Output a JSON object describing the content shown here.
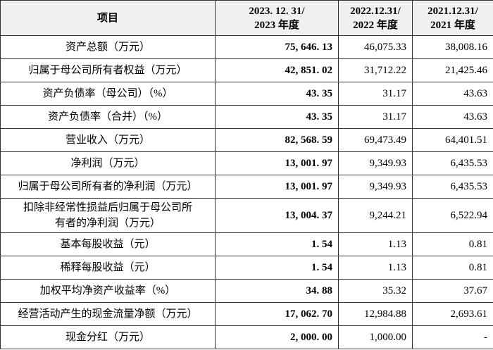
{
  "table": {
    "header": [
      [
        "项目"
      ],
      [
        "2023. 12. 31/",
        "2023 年度"
      ],
      [
        "2022.12.31/",
        "2022 年度"
      ],
      [
        "2021.12.31/",
        "2021 年度"
      ]
    ],
    "rows": [
      [
        [
          "资产总额（万元）"
        ],
        "75, 646. 13",
        "46,075.33",
        "38,008.16"
      ],
      [
        [
          "归属于母公司所有者权益（万元）"
        ],
        "42, 851. 02",
        "31,712.22",
        "21,425.46"
      ],
      [
        [
          "资产负债率（母公司）（%）"
        ],
        "43. 35",
        "31.17",
        "43.63"
      ],
      [
        [
          "资产负债率（合并）（%）"
        ],
        "43. 35",
        "31.17",
        "43.63"
      ],
      [
        [
          "营业收入（万元）"
        ],
        "82, 568. 59",
        "69,473.49",
        "64,401.51"
      ],
      [
        [
          "净利润（万元）"
        ],
        "13, 001. 97",
        "9,349.93",
        "6,435.53"
      ],
      [
        [
          "归属于母公司所有者的净利润（万元）"
        ],
        "13, 001. 97",
        "9,349.93",
        "6,435.53"
      ],
      [
        [
          "扣除非经常性损益后归属于母公司所",
          "有者的净利润（万元）"
        ],
        "13, 004. 37",
        "9,244.21",
        "6,522.94"
      ],
      [
        [
          "基本每股收益（元）"
        ],
        "1. 54",
        "1.13",
        "0.81"
      ],
      [
        [
          "稀释每股收益（元）"
        ],
        "1. 54",
        "1.13",
        "0.81"
      ],
      [
        [
          "加权平均净资产收益率（%）"
        ],
        "34. 88",
        "35.32",
        "37.67"
      ],
      [
        [
          "经营活动产生的现金流量净额（万元）"
        ],
        "17, 062. 70",
        "12,984.88",
        "2,693.61"
      ],
      [
        [
          "现金分红（万元）"
        ],
        "2, 000. 00",
        "1,000.00",
        "-"
      ]
    ]
  }
}
